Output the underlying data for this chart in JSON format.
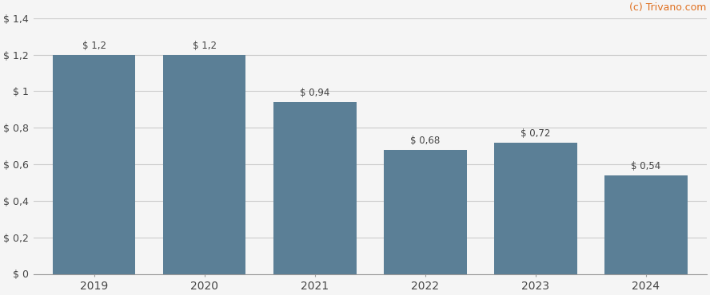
{
  "categories": [
    "2019",
    "2020",
    "2021",
    "2022",
    "2023",
    "2024"
  ],
  "values": [
    1.2,
    1.2,
    0.94,
    0.68,
    0.72,
    0.54
  ],
  "labels": [
    "$ 1,2",
    "$ 1,2",
    "$ 0,94",
    "$ 0,68",
    "$ 0,72",
    "$ 0,54"
  ],
  "bar_color": "#5b7f96",
  "background_color": "#f5f5f5",
  "grid_color": "#cccccc",
  "text_color": "#444444",
  "label_color": "#444444",
  "watermark": "(c) Trivano.com",
  "watermark_color": "#e07020",
  "ylim": [
    0,
    1.4
  ],
  "yticks": [
    0,
    0.2,
    0.4,
    0.6,
    0.8,
    1.0,
    1.2,
    1.4
  ],
  "ytick_labels": [
    "$ 0",
    "$ 0,2",
    "$ 0,4",
    "$ 0,6",
    "$ 0,8",
    "$ 1",
    "$ 1,2",
    "$ 1,4"
  ],
  "bar_width": 0.75
}
